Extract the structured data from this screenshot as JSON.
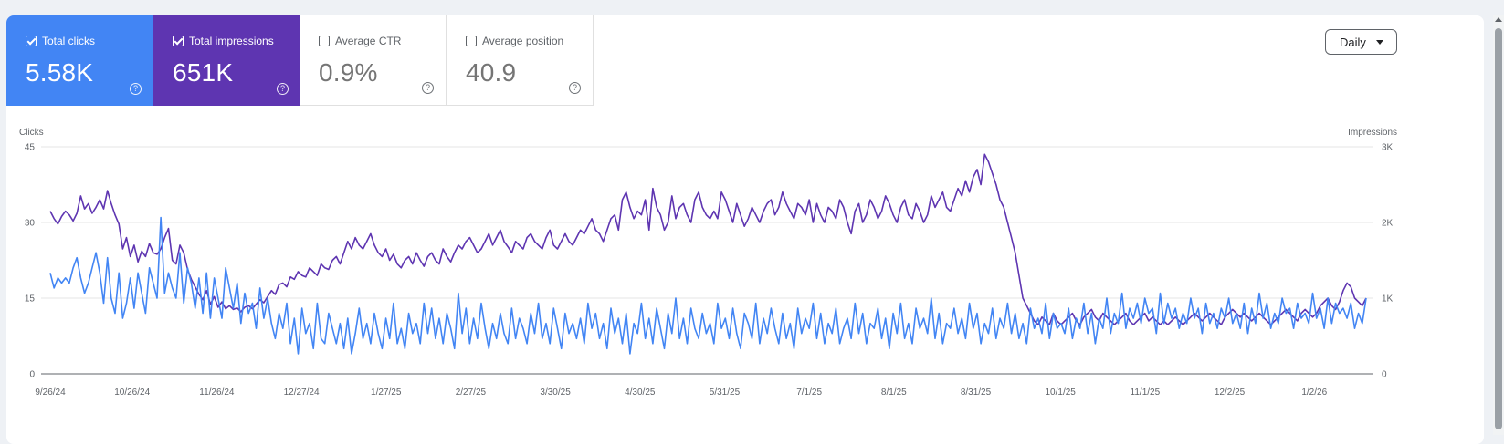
{
  "metrics": {
    "clicks": {
      "label": "Total clicks",
      "value": "5.58K",
      "checked": true
    },
    "impressions": {
      "label": "Total impressions",
      "value": "651K",
      "checked": true
    },
    "ctr": {
      "label": "Average CTR",
      "value": "0.9%",
      "checked": false
    },
    "position": {
      "label": "Average position",
      "value": "40.9",
      "checked": false
    }
  },
  "controls": {
    "granularity": "Daily"
  },
  "icons": {
    "help": "help-circle-icon",
    "checkbox": "checkbox-icon",
    "dropdown": "chevron-down-icon"
  },
  "colors": {
    "clicks": "#4285f4",
    "impressions": "#5e35b1"
  },
  "chart_data": {
    "type": "line",
    "xlabel": "",
    "ylabel_left": "Clicks",
    "ylabel_right": "Impressions",
    "y_left_ticks": [
      "0",
      "15",
      "30",
      "45"
    ],
    "y_right_ticks": [
      "0",
      "1K",
      "2K",
      "3K"
    ],
    "ylim_left": [
      0,
      45
    ],
    "ylim_right": [
      0,
      3000
    ],
    "x_ticks": [
      "9/26/24",
      "10/26/24",
      "11/26/24",
      "12/27/24",
      "1/27/25",
      "2/27/25",
      "3/30/25",
      "4/30/25",
      "5/31/25",
      "7/1/25",
      "8/1/25",
      "8/31/25",
      "10/1/25",
      "11/1/25",
      "12/2/25",
      "1/2/26"
    ],
    "x_range": [
      "9/26/24",
      "1/25/26"
    ],
    "grid": true,
    "series": [
      {
        "name": "Total clicks",
        "axis": "left",
        "color": "#4285f4",
        "values": [
          20,
          17,
          19,
          18,
          19,
          18,
          21,
          23,
          19,
          16,
          18,
          21,
          24,
          20,
          14,
          23,
          15,
          12,
          20,
          11,
          14,
          19,
          13,
          20,
          16,
          12,
          21,
          18,
          15,
          31,
          16,
          20,
          17,
          15,
          24,
          14,
          21,
          18,
          13,
          19,
          12,
          20,
          11,
          19,
          15,
          11,
          21,
          17,
          13,
          18,
          10,
          16,
          12,
          14,
          9,
          17,
          11,
          15,
          10,
          7,
          12,
          9,
          14,
          6,
          11,
          4,
          13,
          8,
          10,
          5,
          14,
          7,
          6,
          12,
          9,
          6,
          10,
          5,
          11,
          4,
          8,
          13,
          7,
          10,
          6,
          12,
          8,
          5,
          11,
          7,
          14,
          6,
          9,
          5,
          12,
          8,
          10,
          6,
          14,
          8,
          13,
          7,
          11,
          6,
          12,
          9,
          5,
          16,
          8,
          13,
          6,
          11,
          7,
          14,
          9,
          5,
          10,
          7,
          12,
          8,
          6,
          13,
          7,
          11,
          9,
          6,
          12,
          8,
          14,
          7,
          10,
          6,
          13,
          9,
          5,
          12,
          8,
          10,
          7,
          11,
          6,
          14,
          9,
          12,
          7,
          10,
          5,
          13,
          8,
          11,
          6,
          12,
          4,
          10,
          8,
          14,
          7,
          11,
          6,
          13,
          9,
          5,
          12,
          8,
          15,
          7,
          11,
          6,
          13,
          9,
          7,
          12,
          8,
          10,
          6,
          14,
          9,
          11,
          7,
          13,
          8,
          5,
          12,
          10,
          7,
          14,
          6,
          11,
          8,
          13,
          9,
          6,
          12,
          7,
          10,
          5,
          13,
          8,
          11,
          9,
          14,
          7,
          12,
          6,
          10,
          8,
          13,
          6,
          9,
          11,
          7,
          14,
          8,
          12,
          6,
          10,
          9,
          13,
          7,
          11,
          5,
          12,
          8,
          14,
          7,
          10,
          6,
          13,
          9,
          11,
          8,
          15,
          7,
          12,
          6,
          10,
          9,
          13,
          8,
          11,
          7,
          14,
          9,
          12,
          6,
          10,
          8,
          13,
          7,
          11,
          9,
          14,
          8,
          12,
          7,
          10,
          6,
          13,
          9,
          11,
          8,
          14,
          7,
          12,
          9,
          10,
          8,
          13,
          7,
          11,
          9,
          14,
          8,
          12,
          6,
          11,
          9,
          15,
          8,
          12,
          10,
          16,
          9,
          13,
          11,
          14,
          10,
          15,
          12,
          13,
          8,
          16,
          10,
          14,
          11,
          13,
          9,
          12,
          10,
          15,
          11,
          13,
          8,
          14,
          10,
          12,
          9,
          13,
          11,
          15,
          10,
          12,
          9,
          14,
          8,
          13,
          10,
          16,
          11,
          14,
          9,
          12,
          10,
          15,
          12,
          13,
          9,
          14,
          11,
          12,
          10,
          16,
          11,
          13,
          9,
          15,
          10,
          14,
          12,
          13,
          11,
          14,
          9,
          12,
          10,
          15
        ],
        "note": ""
      },
      {
        "name": "Total impressions",
        "axis": "right",
        "color": "#5e35b1",
        "values": [
          2150,
          2050,
          1980,
          2080,
          2150,
          2100,
          2020,
          2120,
          2350,
          2180,
          2250,
          2120,
          2200,
          2300,
          2180,
          2420,
          2250,
          2100,
          1980,
          1650,
          1800,
          1550,
          1700,
          1480,
          1620,
          1550,
          1720,
          1600,
          1580,
          1650,
          1800,
          1920,
          1500,
          1450,
          1700,
          1600,
          1380,
          1250,
          1150,
          1050,
          980,
          1100,
          920,
          1020,
          880,
          950,
          860,
          900,
          850,
          870,
          820,
          880,
          900,
          860,
          920,
          980,
          940,
          1020,
          1100,
          1050,
          1180,
          1200,
          1150,
          1280,
          1250,
          1350,
          1300,
          1280,
          1400,
          1350,
          1300,
          1450,
          1400,
          1380,
          1500,
          1550,
          1450,
          1600,
          1750,
          1650,
          1800,
          1700,
          1650,
          1750,
          1850,
          1700,
          1600,
          1550,
          1650,
          1500,
          1580,
          1450,
          1400,
          1500,
          1550,
          1450,
          1600,
          1500,
          1420,
          1550,
          1600,
          1500,
          1450,
          1650,
          1550,
          1480,
          1600,
          1700,
          1650,
          1750,
          1800,
          1700,
          1600,
          1650,
          1750,
          1850,
          1700,
          1800,
          1900,
          1750,
          1680,
          1600,
          1750,
          1700,
          1650,
          1800,
          1850,
          1750,
          1700,
          1650,
          1800,
          1900,
          1700,
          1650,
          1750,
          1850,
          1750,
          1700,
          1800,
          1900,
          1850,
          1950,
          2050,
          1900,
          1850,
          1750,
          1900,
          2050,
          2100,
          1900,
          2300,
          2400,
          2200,
          2050,
          2150,
          2100,
          2300,
          1900,
          2450,
          2200,
          2100,
          1900,
          2000,
          2350,
          2050,
          2200,
          2250,
          2100,
          2000,
          2300,
          2400,
          2200,
          2100,
          2050,
          2150,
          2050,
          2400,
          2300,
          2150,
          2000,
          2250,
          2100,
          1950,
          2050,
          2200,
          2100,
          2000,
          2150,
          2250,
          2300,
          2100,
          2200,
          2400,
          2250,
          2150,
          2050,
          2250,
          2200,
          2100,
          2300,
          2000,
          2250,
          2100,
          2000,
          2200,
          2150,
          2050,
          2300,
          2200,
          2000,
          1850,
          2150,
          2250,
          2000,
          2100,
          2300,
          2200,
          2050,
          2150,
          2350,
          2250,
          2100,
          2000,
          2200,
          2300,
          2100,
          2050,
          2250,
          2150,
          2000,
          2100,
          2350,
          2200,
          2300,
          2400,
          2200,
          2150,
          2300,
          2450,
          2350,
          2550,
          2400,
          2600,
          2700,
          2500,
          2900,
          2800,
          2650,
          2500,
          2300,
          2200,
          2000,
          1800,
          1600,
          1300,
          1000,
          900,
          800,
          700,
          650,
          750,
          700,
          650,
          800,
          700,
          650,
          700,
          750,
          800,
          700,
          650,
          750,
          800,
          850,
          750,
          700,
          800,
          750,
          700,
          650,
          700,
          750,
          800,
          700,
          650,
          700,
          750,
          800,
          700,
          750,
          700,
          650,
          700,
          650,
          700,
          750,
          700,
          650,
          700,
          750,
          800,
          750,
          700,
          750,
          800,
          750,
          700,
          650,
          750,
          800,
          850,
          800,
          750,
          800,
          750,
          700,
          750,
          800,
          750,
          700,
          650,
          700,
          750,
          800,
          850,
          800,
          750,
          700,
          800,
          850,
          800,
          750,
          800,
          900,
          950,
          1000,
          900,
          850,
          950,
          1100,
          1200,
          1150,
          1000,
          950,
          900,
          1000
        ],
        "note": ""
      }
    ]
  }
}
